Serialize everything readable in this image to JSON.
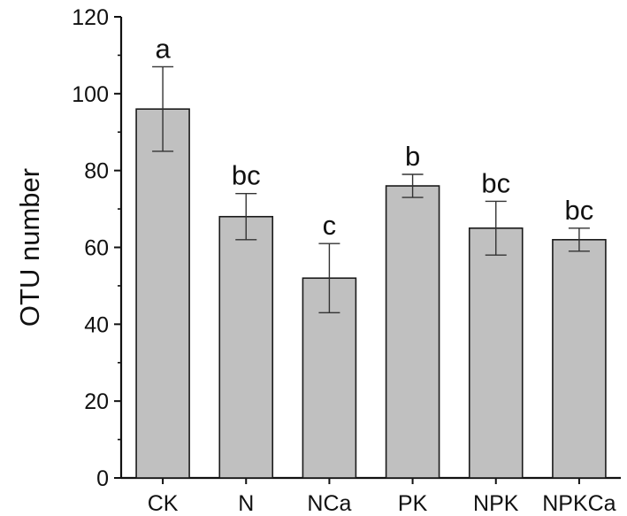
{
  "chart_data": {
    "type": "bar",
    "categories": [
      "CK",
      "N",
      "NCa",
      "PK",
      "NPK",
      "NPKCa"
    ],
    "values": [
      96,
      68,
      52,
      76,
      65,
      62
    ],
    "error_bars": [
      [
        85,
        107
      ],
      [
        62,
        74
      ],
      [
        43,
        61
      ],
      [
        73,
        79
      ],
      [
        58,
        72
      ],
      [
        59,
        65
      ]
    ],
    "significance_labels": [
      "a",
      "bc",
      "c",
      "b",
      "bc",
      "bc"
    ],
    "title": "",
    "xlabel": "",
    "ylabel": "OTU number",
    "ylim": [
      0,
      120
    ],
    "yticks": [
      0,
      20,
      40,
      60,
      80,
      100,
      120
    ],
    "grid": false,
    "colors": {
      "bar_fill": "#c0c0c0",
      "bar_stroke": "#1a1a1a",
      "axis": "#111111"
    }
  }
}
